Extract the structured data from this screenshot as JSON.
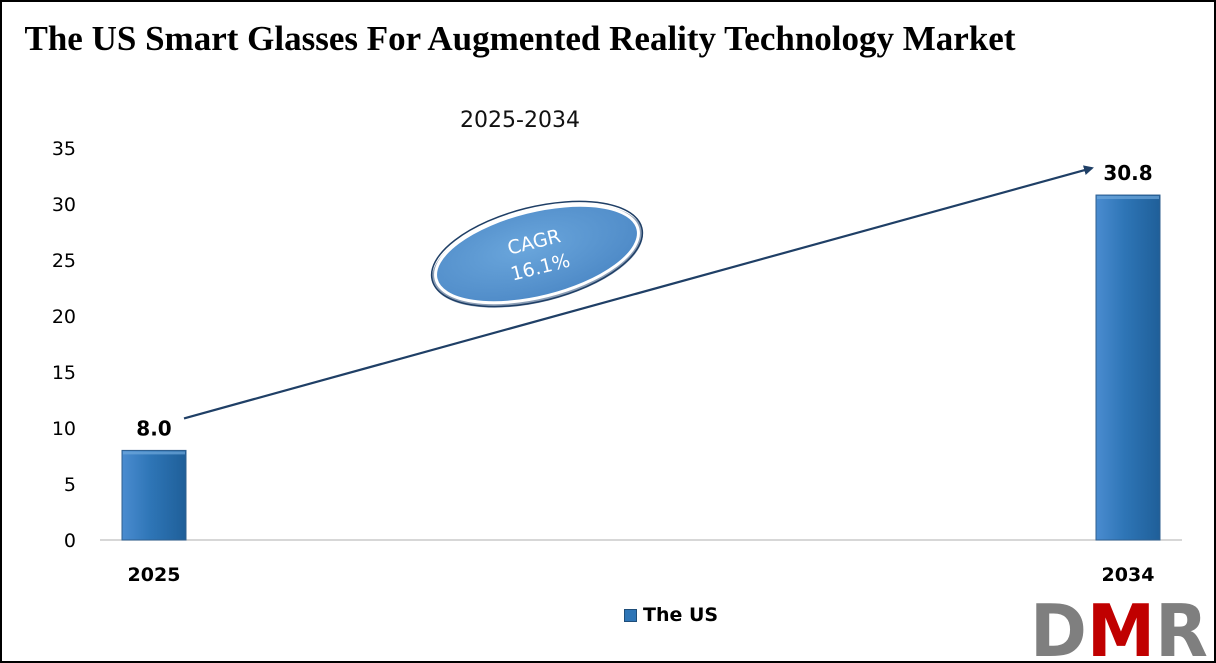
{
  "chart_data": {
    "type": "bar",
    "title": "The US Smart Glasses For Augmented Reality Technology Market",
    "subtitle": "2025-2034",
    "categories": [
      "2025",
      "2034"
    ],
    "series": [
      {
        "name": "The US",
        "values": [
          8.0,
          30.8
        ],
        "color": "#2e75b6"
      }
    ],
    "data_labels": [
      "8.0",
      "30.8"
    ],
    "ylim": [
      0,
      35
    ],
    "yticks": [
      "0",
      "5",
      "10",
      "15",
      "20",
      "25",
      "30",
      "35"
    ],
    "grid": false,
    "legend_position": "bottom",
    "annotation": {
      "type": "cagr-arrow",
      "line1": "CAGR",
      "line2": "16.1%",
      "color": "#5b9bd5"
    }
  },
  "logo": {
    "text": "DMR",
    "colors": [
      "#7f7f7f",
      "#c00000",
      "#7f7f7f"
    ]
  }
}
